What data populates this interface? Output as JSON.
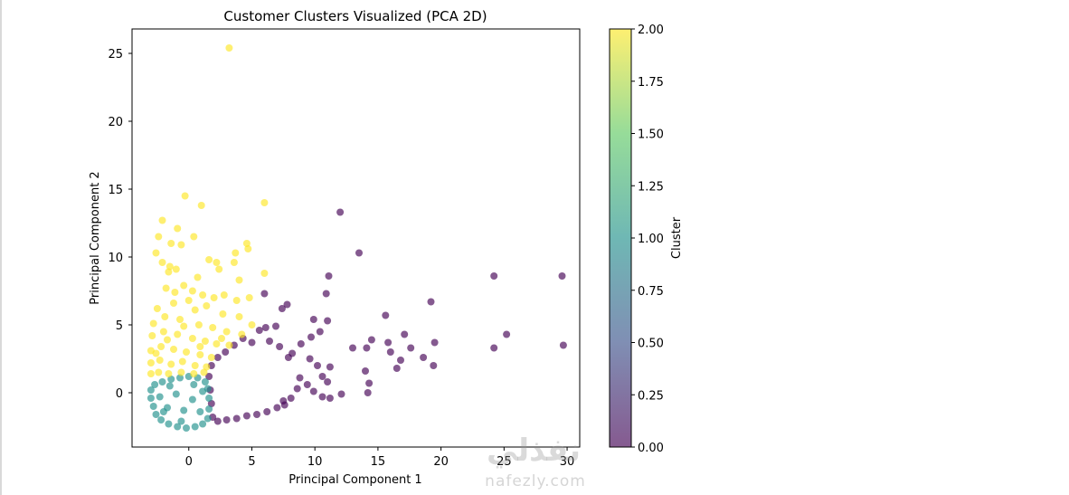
{
  "chart_data": {
    "type": "scatter",
    "title": "Customer Clusters Visualized (PCA 2D)",
    "xlabel": "Principal Component 1",
    "ylabel": "Principal Component 2",
    "xlim": [
      -4.5,
      31
    ],
    "ylim": [
      -4,
      26.8
    ],
    "xticks": [
      0,
      5,
      10,
      15,
      20,
      25,
      30
    ],
    "yticks": [
      0,
      5,
      10,
      15,
      20,
      25
    ],
    "grid": false,
    "marker_alpha": 0.65,
    "colorbar": {
      "label": "Cluster",
      "min": 0.0,
      "max": 2.0,
      "ticks": [
        "0.00",
        "0.25",
        "0.50",
        "0.75",
        "1.00",
        "1.25",
        "1.50",
        "1.75",
        "2.00"
      ],
      "colormap": "viridis",
      "stops": [
        "#440154",
        "#3b528b",
        "#21918c",
        "#5ec962",
        "#fde725"
      ]
    },
    "series": [
      {
        "cluster": 0,
        "color": "#440154",
        "points": [
          [
            12.0,
            13.3
          ],
          [
            13.5,
            10.3
          ],
          [
            11.1,
            8.6
          ],
          [
            24.2,
            8.6
          ],
          [
            29.6,
            8.6
          ],
          [
            7.8,
            6.5
          ],
          [
            19.2,
            6.7
          ],
          [
            10.9,
            7.3
          ],
          [
            6.0,
            7.3
          ],
          [
            7.4,
            6.2
          ],
          [
            15.6,
            5.7
          ],
          [
            11.0,
            5.3
          ],
          [
            9.9,
            5.4
          ],
          [
            25.2,
            4.3
          ],
          [
            29.7,
            3.5
          ],
          [
            24.2,
            3.3
          ],
          [
            19.5,
            3.7
          ],
          [
            14.5,
            3.9
          ],
          [
            15.8,
            3.7
          ],
          [
            17.1,
            4.3
          ],
          [
            18.6,
            2.6
          ],
          [
            17.6,
            3.3
          ],
          [
            13.0,
            3.3
          ],
          [
            14.1,
            3.3
          ],
          [
            16.0,
            3.0
          ],
          [
            16.8,
            2.4
          ],
          [
            19.4,
            2.0
          ],
          [
            16.5,
            1.8
          ],
          [
            14.0,
            1.6
          ],
          [
            14.3,
            0.7
          ],
          [
            14.2,
            0.0
          ],
          [
            12.1,
            -0.1
          ],
          [
            10.4,
            4.5
          ],
          [
            9.7,
            4.1
          ],
          [
            8.9,
            3.6
          ],
          [
            8.2,
            2.9
          ],
          [
            9.6,
            2.5
          ],
          [
            10.2,
            2.0
          ],
          [
            10.6,
            1.2
          ],
          [
            11.2,
            1.9
          ],
          [
            11.0,
            0.8
          ],
          [
            10.6,
            -0.3
          ],
          [
            11.2,
            -0.4
          ],
          [
            9.9,
            0.1
          ],
          [
            9.4,
            0.6
          ],
          [
            8.8,
            1.1
          ],
          [
            8.6,
            0.3
          ],
          [
            8.1,
            -0.4
          ],
          [
            7.5,
            -0.6
          ],
          [
            6.9,
            4.9
          ],
          [
            6.1,
            4.8
          ],
          [
            5.6,
            4.6
          ],
          [
            6.4,
            3.8
          ],
          [
            7.2,
            3.4
          ],
          [
            7.9,
            2.6
          ],
          [
            5.0,
            3.7
          ],
          [
            4.3,
            4.0
          ],
          [
            3.6,
            3.5
          ],
          [
            2.9,
            3.0
          ],
          [
            2.3,
            2.6
          ],
          [
            1.8,
            2.0
          ],
          [
            1.6,
            1.2
          ],
          [
            1.7,
            0.2
          ],
          [
            1.8,
            -0.8
          ],
          [
            1.9,
            -1.8
          ],
          [
            2.3,
            -2.1
          ],
          [
            3.0,
            -2.0
          ],
          [
            3.8,
            -1.9
          ],
          [
            4.6,
            -1.7
          ],
          [
            5.4,
            -1.6
          ],
          [
            6.2,
            -1.4
          ],
          [
            7.0,
            -1.1
          ],
          [
            7.6,
            -0.9
          ]
        ]
      },
      {
        "cluster": 1,
        "color": "#21918c",
        "points": [
          [
            -3.0,
            0.2
          ],
          [
            -3.0,
            -0.4
          ],
          [
            -2.8,
            -1.0
          ],
          [
            -2.6,
            -1.6
          ],
          [
            -2.2,
            -2.0
          ],
          [
            -1.6,
            -2.3
          ],
          [
            -0.9,
            -2.5
          ],
          [
            -0.2,
            -2.6
          ],
          [
            0.5,
            -2.5
          ],
          [
            1.1,
            -2.3
          ],
          [
            1.5,
            -1.9
          ],
          [
            1.6,
            -1.2
          ],
          [
            1.6,
            -0.4
          ],
          [
            1.5,
            0.3
          ],
          [
            1.3,
            0.8
          ],
          [
            0.7,
            1.1
          ],
          [
            0.0,
            1.2
          ],
          [
            -0.7,
            1.1
          ],
          [
            -1.4,
            1.0
          ],
          [
            -2.1,
            0.8
          ],
          [
            -2.7,
            0.6
          ],
          [
            -2.3,
            -0.3
          ],
          [
            -1.7,
            -1.1
          ],
          [
            -1.0,
            -0.1
          ],
          [
            -0.4,
            -1.3
          ],
          [
            0.3,
            -0.5
          ],
          [
            0.9,
            -1.4
          ],
          [
            -1.5,
            0.5
          ],
          [
            0.4,
            0.6
          ],
          [
            1.1,
            0.1
          ],
          [
            -0.6,
            -2.1
          ],
          [
            -2.0,
            -1.4
          ]
        ]
      },
      {
        "cluster": 2,
        "color": "#fde725",
        "points": [
          [
            3.2,
            25.4
          ],
          [
            -0.3,
            14.5
          ],
          [
            1.0,
            13.8
          ],
          [
            6.0,
            14.0
          ],
          [
            -2.1,
            12.7
          ],
          [
            -0.9,
            12.1
          ],
          [
            0.4,
            11.5
          ],
          [
            -2.4,
            11.5
          ],
          [
            -1.4,
            11.0
          ],
          [
            -0.6,
            10.9
          ],
          [
            4.6,
            11.0
          ],
          [
            -2.6,
            10.3
          ],
          [
            3.7,
            10.3
          ],
          [
            1.6,
            9.8
          ],
          [
            2.2,
            9.6
          ],
          [
            4.7,
            10.6
          ],
          [
            3.6,
            9.6
          ],
          [
            -1.5,
            9.3
          ],
          [
            2.4,
            9.1
          ],
          [
            -2.1,
            9.6
          ],
          [
            -1.0,
            9.1
          ],
          [
            0.7,
            8.5
          ],
          [
            -1.6,
            8.9
          ],
          [
            6.0,
            8.8
          ],
          [
            4.0,
            8.3
          ],
          [
            2.8,
            7.2
          ],
          [
            -0.4,
            7.9
          ],
          [
            -1.8,
            7.7
          ],
          [
            0.3,
            7.5
          ],
          [
            2.0,
            7.0
          ],
          [
            3.8,
            6.8
          ],
          [
            4.8,
            7.0
          ],
          [
            -2.5,
            6.2
          ],
          [
            -1.2,
            6.6
          ],
          [
            0.5,
            6.1
          ],
          [
            1.4,
            6.4
          ],
          [
            2.7,
            5.8
          ],
          [
            4.0,
            5.6
          ],
          [
            5.0,
            5.0
          ],
          [
            -2.8,
            5.1
          ],
          [
            -1.9,
            5.6
          ],
          [
            -0.7,
            5.4
          ],
          [
            0.8,
            5.0
          ],
          [
            1.9,
            4.8
          ],
          [
            3.0,
            4.5
          ],
          [
            4.2,
            4.3
          ],
          [
            -2.9,
            4.2
          ],
          [
            -2.0,
            4.5
          ],
          [
            -0.9,
            4.3
          ],
          [
            0.3,
            4.0
          ],
          [
            1.3,
            3.8
          ],
          [
            2.2,
            3.6
          ],
          [
            3.2,
            3.5
          ],
          [
            -3.0,
            3.1
          ],
          [
            -2.2,
            3.4
          ],
          [
            -1.2,
            3.2
          ],
          [
            -0.2,
            3.0
          ],
          [
            0.9,
            2.8
          ],
          [
            1.8,
            2.6
          ],
          [
            -3.0,
            2.2
          ],
          [
            -2.3,
            2.4
          ],
          [
            -1.4,
            2.1
          ],
          [
            -0.5,
            2.3
          ],
          [
            0.5,
            2.0
          ],
          [
            1.4,
            1.9
          ],
          [
            -3.0,
            1.4
          ],
          [
            -2.4,
            1.5
          ],
          [
            -1.6,
            1.4
          ],
          [
            -0.6,
            1.5
          ],
          [
            0.4,
            1.4
          ],
          [
            1.2,
            1.5
          ],
          [
            -2.6,
            2.9
          ],
          [
            -1.7,
            3.9
          ],
          [
            -0.4,
            4.9
          ],
          [
            0.9,
            3.4
          ],
          [
            2.6,
            4.0
          ],
          [
            -1.1,
            7.4
          ],
          [
            0.0,
            6.8
          ],
          [
            1.1,
            7.2
          ]
        ]
      }
    ]
  },
  "watermark": {
    "arabic": "نفذلي",
    "latin": "nafezly.com"
  }
}
